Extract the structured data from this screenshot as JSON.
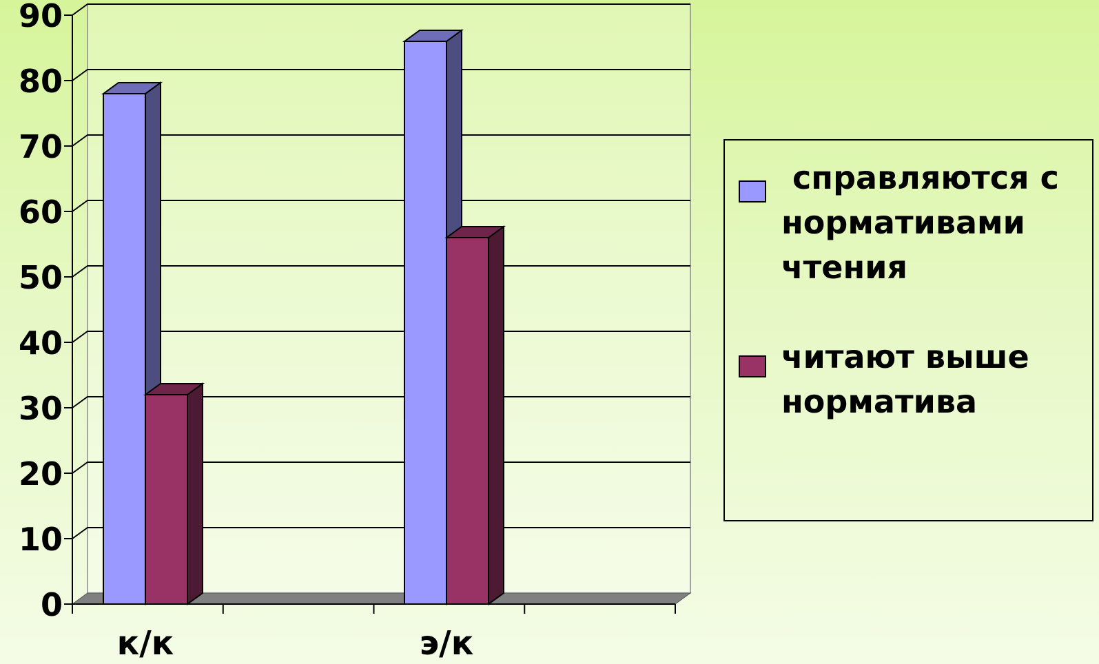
{
  "chart_data": {
    "type": "bar",
    "categories": [
      "к/к",
      "э/к"
    ],
    "series": [
      {
        "name": " справляются с нормативами чтения",
        "values": [
          78,
          86
        ],
        "color": "#9999ff"
      },
      {
        "name": "читают выше норматива",
        "values": [
          32,
          56
        ],
        "color": "#993366"
      }
    ],
    "ylim": [
      0,
      90
    ],
    "yticks": [
      "0",
      "10",
      "20",
      "30",
      "40",
      "50",
      "60",
      "70",
      "80",
      "90"
    ],
    "grid": true,
    "legend_position": "right",
    "style": "3d-column"
  },
  "legend": {
    "items": [
      {
        "label": " справляются с нормативами чтения",
        "color": "#9999ff"
      },
      {
        "label": "читают выше норматива",
        "color": "#993366"
      }
    ]
  }
}
